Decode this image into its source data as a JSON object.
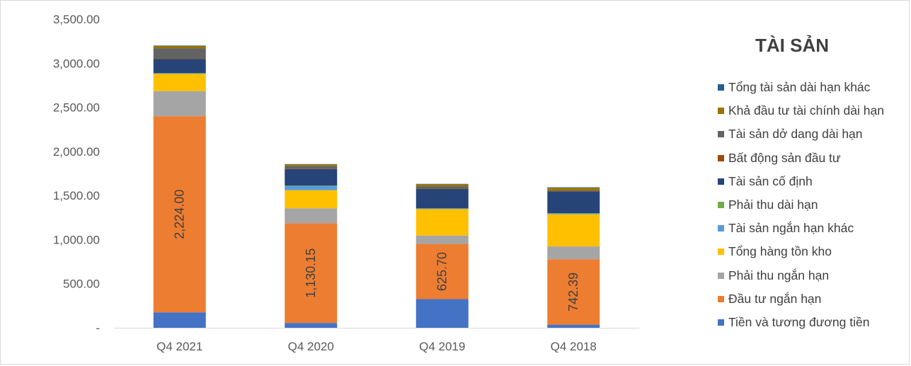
{
  "chart_data": {
    "type": "bar",
    "stacked": true,
    "categories": [
      "Q4 2021",
      "Q4 2020",
      "Q4 2019",
      "Q4 2018"
    ],
    "ylim": [
      0,
      3500
    ],
    "yticks": [
      {
        "value": 0,
        "label": "-"
      },
      {
        "value": 500,
        "label": "500.00"
      },
      {
        "value": 1000,
        "label": "1,000.00"
      },
      {
        "value": 1500,
        "label": "1,500.00"
      },
      {
        "value": 2000,
        "label": "2,000.00"
      },
      {
        "value": 2500,
        "label": "2,500.00"
      },
      {
        "value": 3000,
        "label": "3,000.00"
      },
      {
        "value": 3500,
        "label": "3,500.00"
      }
    ],
    "legend_title": "TÀI SẢN",
    "legend_position": "right",
    "grid": false,
    "series": [
      {
        "name": "Tiền và tương đương tiền",
        "color": "#4472c4",
        "values": [
          175,
          55,
          325,
          35
        ]
      },
      {
        "name": "Đầu tư ngắn hạn",
        "color": "#ed7d31",
        "values": [
          2224.0,
          1130.15,
          625.7,
          742.39
        ],
        "labels": [
          "2,224.00",
          "1,130.15",
          "625.70",
          "742.39"
        ]
      },
      {
        "name": "Phải thu ngắn hạn",
        "color": "#a5a5a5",
        "values": [
          285,
          170,
          95,
          145
        ]
      },
      {
        "name": "Tổng hàng tồn kho",
        "color": "#ffc000",
        "values": [
          195,
          205,
          300,
          365
        ]
      },
      {
        "name": "Tài sản ngắn hạn khác",
        "color": "#5b9bd5",
        "values": [
          5,
          50,
          5,
          10
        ]
      },
      {
        "name": "Phải thu dài hạn",
        "color": "#70ad47",
        "values": [
          3,
          3,
          3,
          3
        ]
      },
      {
        "name": "Tài sản cố định",
        "color": "#264478",
        "values": [
          160,
          185,
          220,
          245
        ]
      },
      {
        "name": "Bất động sản đầu tư",
        "color": "#9e480e",
        "values": [
          3,
          3,
          3,
          3
        ]
      },
      {
        "name": "Tài sản dở dang dài hạn",
        "color": "#636363",
        "values": [
          120,
          30,
          25,
          10
        ]
      },
      {
        "name": "Khả đầu tư tài chính dài hạn",
        "color": "#997300",
        "values": [
          25,
          20,
          25,
          30
        ]
      },
      {
        "name": "Tổng tài sản dài hạn khác",
        "color": "#255e91",
        "values": [
          5,
          5,
          5,
          5
        ]
      }
    ]
  }
}
